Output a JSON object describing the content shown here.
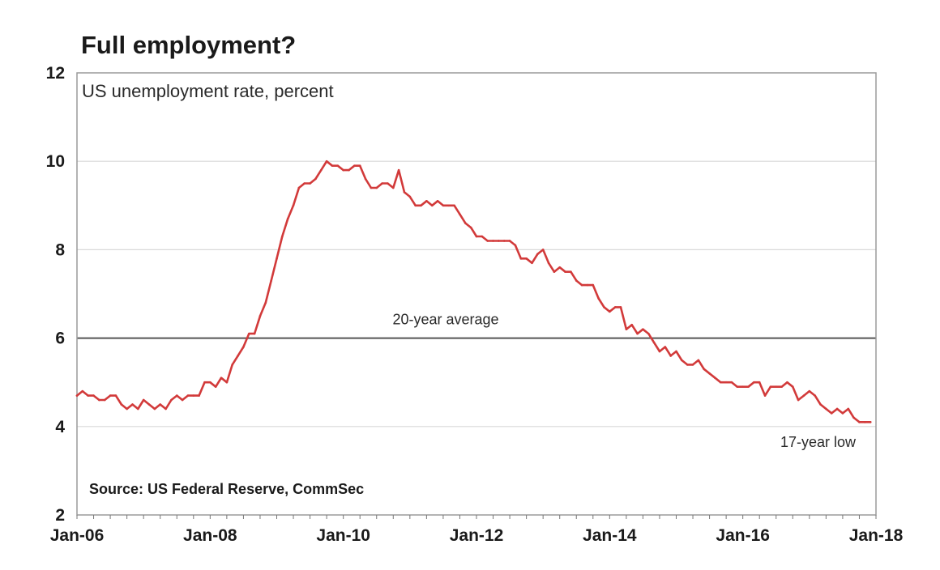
{
  "chart_data": {
    "type": "line",
    "title": "Full employment?",
    "subtitle": "US unemployment rate, percent",
    "source": "Source: US Federal Reserve, CommSec",
    "xlabel": "",
    "ylabel": "",
    "ylim": [
      2,
      12
    ],
    "yticks": [
      "2",
      "4",
      "6",
      "8",
      "10",
      "12"
    ],
    "xlim": [
      "2006-01",
      "2018-01"
    ],
    "xticks": [
      {
        "date": "2006-01",
        "label": "Jan-06"
      },
      {
        "date": "2008-01",
        "label": "Jan-08"
      },
      {
        "date": "2010-01",
        "label": "Jan-10"
      },
      {
        "date": "2012-01",
        "label": "Jan-12"
      },
      {
        "date": "2014-01",
        "label": "Jan-14"
      },
      {
        "date": "2016-01",
        "label": "Jan-16"
      },
      {
        "date": "2018-01",
        "label": "Jan-18"
      }
    ],
    "grid": true,
    "reference_line": {
      "value": 6.0,
      "label": "20-year average"
    },
    "annotations": [
      {
        "text": "17-year low"
      }
    ],
    "line_color": "#d23a3a",
    "series": [
      {
        "x": [
          "2006-01",
          "2006-02",
          "2006-03",
          "2006-04",
          "2006-05",
          "2006-06",
          "2006-07",
          "2006-08",
          "2006-09",
          "2006-10",
          "2006-11",
          "2006-12",
          "2007-01",
          "2007-02",
          "2007-03",
          "2007-04",
          "2007-05",
          "2007-06",
          "2007-07",
          "2007-08",
          "2007-09",
          "2007-10",
          "2007-11",
          "2007-12",
          "2008-01",
          "2008-02",
          "2008-03",
          "2008-04",
          "2008-05",
          "2008-06",
          "2008-07",
          "2008-08",
          "2008-09",
          "2008-10",
          "2008-11",
          "2008-12",
          "2009-01",
          "2009-02",
          "2009-03",
          "2009-04",
          "2009-05",
          "2009-06",
          "2009-07",
          "2009-08",
          "2009-09",
          "2009-10",
          "2009-11",
          "2009-12",
          "2010-01",
          "2010-02",
          "2010-03",
          "2010-04",
          "2010-05",
          "2010-06",
          "2010-07",
          "2010-08",
          "2010-09",
          "2010-10",
          "2010-11",
          "2010-12",
          "2011-01",
          "2011-02",
          "2011-03",
          "2011-04",
          "2011-05",
          "2011-06",
          "2011-07",
          "2011-08",
          "2011-09",
          "2011-10",
          "2011-11",
          "2011-12",
          "2012-01",
          "2012-02",
          "2012-03",
          "2012-04",
          "2012-05",
          "2012-06",
          "2012-07",
          "2012-08",
          "2012-09",
          "2012-10",
          "2012-11",
          "2012-12",
          "2013-01",
          "2013-02",
          "2013-03",
          "2013-04",
          "2013-05",
          "2013-06",
          "2013-07",
          "2013-08",
          "2013-09",
          "2013-10",
          "2013-11",
          "2013-12",
          "2014-01",
          "2014-02",
          "2014-03",
          "2014-04",
          "2014-05",
          "2014-06",
          "2014-07",
          "2014-08",
          "2014-09",
          "2014-10",
          "2014-11",
          "2014-12",
          "2015-01",
          "2015-02",
          "2015-03",
          "2015-04",
          "2015-05",
          "2015-06",
          "2015-07",
          "2015-08",
          "2015-09",
          "2015-10",
          "2015-11",
          "2015-12",
          "2016-01",
          "2016-02",
          "2016-03",
          "2016-04",
          "2016-05",
          "2016-06",
          "2016-07",
          "2016-08",
          "2016-09",
          "2016-10",
          "2016-11",
          "2016-12",
          "2017-01",
          "2017-02",
          "2017-03",
          "2017-04",
          "2017-05",
          "2017-06",
          "2017-07",
          "2017-08",
          "2017-09",
          "2017-10",
          "2017-11",
          "2017-12"
        ],
        "values": [
          4.7,
          4.8,
          4.7,
          4.7,
          4.6,
          4.6,
          4.7,
          4.7,
          4.5,
          4.4,
          4.5,
          4.4,
          4.6,
          4.5,
          4.4,
          4.5,
          4.4,
          4.6,
          4.7,
          4.6,
          4.7,
          4.7,
          4.7,
          5.0,
          5.0,
          4.9,
          5.1,
          5.0,
          5.4,
          5.6,
          5.8,
          6.1,
          6.1,
          6.5,
          6.8,
          7.3,
          7.8,
          8.3,
          8.7,
          9.0,
          9.4,
          9.5,
          9.5,
          9.6,
          9.8,
          10.0,
          9.9,
          9.9,
          9.8,
          9.8,
          9.9,
          9.9,
          9.6,
          9.4,
          9.4,
          9.5,
          9.5,
          9.4,
          9.8,
          9.3,
          9.2,
          9.0,
          9.0,
          9.1,
          9.0,
          9.1,
          9.0,
          9.0,
          9.0,
          8.8,
          8.6,
          8.5,
          8.3,
          8.3,
          8.2,
          8.2,
          8.2,
          8.2,
          8.2,
          8.1,
          7.8,
          7.8,
          7.7,
          7.9,
          8.0,
          7.7,
          7.5,
          7.6,
          7.5,
          7.5,
          7.3,
          7.2,
          7.2,
          7.2,
          6.9,
          6.7,
          6.6,
          6.7,
          6.7,
          6.2,
          6.3,
          6.1,
          6.2,
          6.1,
          5.9,
          5.7,
          5.8,
          5.6,
          5.7,
          5.5,
          5.4,
          5.4,
          5.5,
          5.3,
          5.2,
          5.1,
          5.0,
          5.0,
          5.0,
          4.9,
          4.9,
          4.9,
          5.0,
          5.0,
          4.7,
          4.9,
          4.9,
          4.9,
          5.0,
          4.9,
          4.6,
          4.7,
          4.8,
          4.7,
          4.5,
          4.4,
          4.3,
          4.4,
          4.3,
          4.4,
          4.2,
          4.1,
          4.1,
          4.1
        ]
      }
    ]
  }
}
